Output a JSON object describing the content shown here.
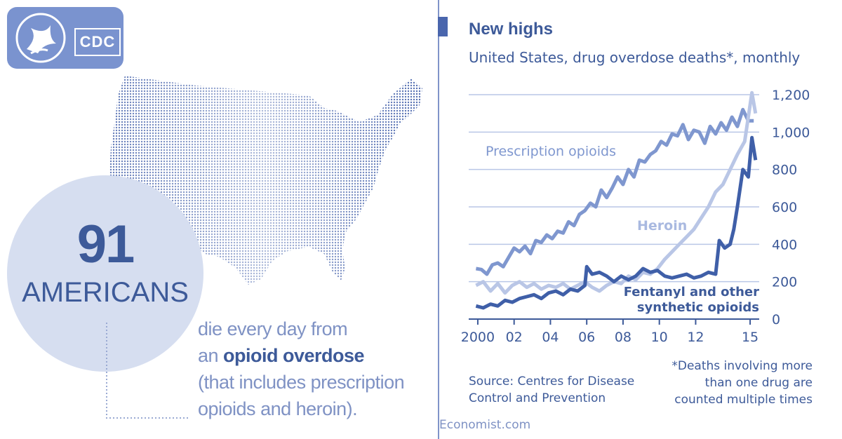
{
  "left": {
    "logo_text": "CDC",
    "stat_number": "91",
    "stat_unit": "AMERICANS",
    "desc_line1": "die every day from",
    "desc_line2_prefix": "an ",
    "desc_line2_strong": "opioid overdose",
    "desc_line3": "(that includes prescription",
    "desc_line4": "opioids and heroin).",
    "colors": {
      "circle": "#d6def0",
      "map": "#4a66ad",
      "logo": "#7a93cf"
    }
  },
  "chart_data": {
    "type": "line",
    "title": "New highs",
    "subtitle": "United States, drug overdose deaths*, monthly",
    "ylim": [
      0,
      1200
    ],
    "xlim": [
      1999.5,
      2015.5
    ],
    "y_ticks": [
      0,
      200,
      400,
      600,
      800,
      1000,
      1200
    ],
    "y_tick_labels": [
      "0",
      "200",
      "400",
      "600",
      "800",
      "1,000",
      "1,200"
    ],
    "x_ticks": [
      2000,
      2002,
      2004,
      2006,
      2008,
      2010,
      2012,
      2015
    ],
    "x_tick_labels": [
      "2000",
      "02",
      "04",
      "06",
      "08",
      "10",
      "12",
      "15"
    ],
    "grid": true,
    "series": [
      {
        "name": "Prescription opioids",
        "color": "#7f97cf",
        "x": [
          1999.9,
          2000.2,
          2000.5,
          2000.8,
          2001.1,
          2001.4,
          2001.7,
          2002.0,
          2002.3,
          2002.6,
          2002.9,
          2003.2,
          2003.5,
          2003.8,
          2004.1,
          2004.4,
          2004.7,
          2005.0,
          2005.3,
          2005.6,
          2005.9,
          2006.2,
          2006.5,
          2006.8,
          2007.1,
          2007.4,
          2007.7,
          2008.0,
          2008.3,
          2008.6,
          2008.9,
          2009.2,
          2009.5,
          2009.8,
          2010.1,
          2010.4,
          2010.7,
          2011.0,
          2011.3,
          2011.6,
          2011.9,
          2012.2,
          2012.5,
          2012.8,
          2013.1,
          2013.4,
          2013.7,
          2014.0,
          2014.3,
          2014.6,
          2014.9,
          2015.2
        ],
        "values": [
          270,
          265,
          240,
          290,
          300,
          280,
          330,
          380,
          360,
          390,
          350,
          420,
          410,
          450,
          430,
          470,
          460,
          520,
          500,
          560,
          580,
          620,
          600,
          690,
          650,
          700,
          760,
          720,
          800,
          760,
          850,
          840,
          880,
          900,
          950,
          930,
          990,
          980,
          1040,
          960,
          1010,
          1000,
          940,
          1030,
          990,
          1050,
          1010,
          1080,
          1030,
          1120,
          1060,
          1060
        ]
      },
      {
        "name": "Heroin",
        "color": "#b9c6e6",
        "x": [
          1999.9,
          2000.3,
          2000.7,
          2001.1,
          2001.5,
          2001.9,
          2002.3,
          2002.7,
          2003.1,
          2003.5,
          2003.9,
          2004.3,
          2004.7,
          2005.1,
          2005.5,
          2005.9,
          2006.3,
          2006.7,
          2007.1,
          2007.5,
          2007.9,
          2008.3,
          2008.7,
          2009.1,
          2009.5,
          2009.9,
          2010.3,
          2010.7,
          2011.1,
          2011.5,
          2011.9,
          2012.3,
          2012.7,
          2013.1,
          2013.5,
          2013.9,
          2014.3,
          2014.7,
          2015.1,
          2015.3
        ],
        "values": [
          180,
          200,
          150,
          190,
          140,
          180,
          200,
          170,
          190,
          160,
          180,
          170,
          190,
          160,
          180,
          200,
          170,
          150,
          180,
          200,
          190,
          230,
          210,
          250,
          240,
          270,
          320,
          360,
          400,
          440,
          480,
          540,
          600,
          680,
          720,
          800,
          880,
          950,
          1210,
          1100
        ]
      },
      {
        "name": "Fentanyl and other synthetic opioids",
        "color": "#3f5fa8",
        "x": [
          1999.9,
          2000.3,
          2000.7,
          2001.1,
          2001.5,
          2001.9,
          2002.3,
          2002.7,
          2003.1,
          2003.5,
          2003.9,
          2004.3,
          2004.7,
          2005.1,
          2005.5,
          2005.9,
          2006.0,
          2006.3,
          2006.7,
          2007.1,
          2007.5,
          2007.9,
          2008.3,
          2008.7,
          2009.1,
          2009.5,
          2009.9,
          2010.3,
          2010.7,
          2011.1,
          2011.5,
          2011.9,
          2012.3,
          2012.7,
          2013.1,
          2013.3,
          2013.6,
          2013.9,
          2014.1,
          2014.3,
          2014.6,
          2014.9,
          2015.1,
          2015.3
        ],
        "values": [
          70,
          60,
          80,
          70,
          100,
          90,
          110,
          120,
          130,
          110,
          140,
          150,
          130,
          160,
          150,
          180,
          280,
          240,
          250,
          230,
          200,
          230,
          210,
          230,
          270,
          250,
          260,
          230,
          220,
          230,
          240,
          220,
          230,
          250,
          240,
          420,
          380,
          400,
          480,
          600,
          800,
          760,
          970,
          850
        ]
      }
    ],
    "annotations": [
      "Prescription opioids",
      "Heroin",
      "Fentanyl and other",
      "synthetic opioids"
    ],
    "source_line1": "Source: Centres for Disease",
    "source_line2": "Control and Prevention",
    "footnote_line1": "*Deaths involving more",
    "footnote_line2": "than one drug are",
    "footnote_line3": "counted multiple times",
    "credit": "Economist.com"
  }
}
